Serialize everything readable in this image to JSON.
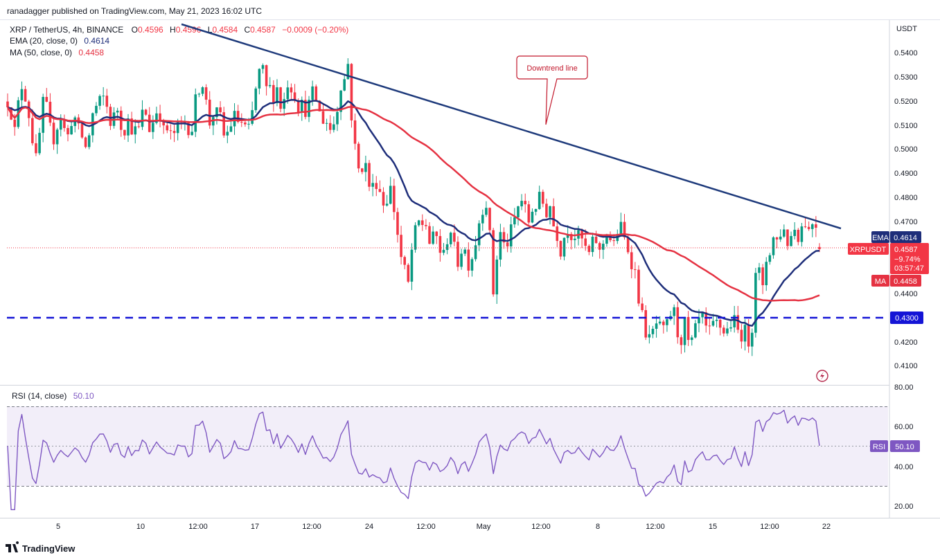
{
  "publisher": "ranadagger published on TradingView.com, May 21, 2023 16:02 UTC",
  "legend": {
    "symbol": "XRP / TetherUS, 4h, BINANCE",
    "o_label": "O",
    "o": "0.4596",
    "h_label": "H",
    "h": "0.4596",
    "l_label": "L",
    "l": "0.4584",
    "c_label": "C",
    "c": "0.4587",
    "change": "−0.0009 (−0.20%)",
    "ema": "EMA (20, close, 0)",
    "ema_value": "0.4614",
    "ma": "MA (50, close, 0)",
    "ma_value": "0.4458"
  },
  "rsi_legend": {
    "label": "RSI (14, close)",
    "value": "50.10"
  },
  "annotation": "Downtrend line",
  "branding": "TradingView",
  "badges": {
    "ema_tag": "EMA",
    "ema_value": "0.4614",
    "symbol_tag": "XRPUSDT",
    "price": "0.4587",
    "change": "−9.74%",
    "countdown": "03:57:47",
    "ma_tag": "MA",
    "ma_value": "0.4458",
    "support_value": "0.4300",
    "rsi_tag": "RSI",
    "rsi_value": "50.10"
  },
  "colors": {
    "up": "#089981",
    "down": "#f23645",
    "ema": "#1e2e7a",
    "ma": "#e53242",
    "trendline": "#1e3a7b",
    "support": "#1414d6",
    "rsi": "#7e57c2",
    "rsi_band": "rgba(126,87,194,0.10)",
    "price_line": "#f23645"
  },
  "chart_data": {
    "type": "candlestick",
    "pair": "XRPUSDT",
    "price_axis": {
      "label": "USDT",
      "ticks": [
        "0.5400",
        "0.5300",
        "0.5200",
        "0.5100",
        "0.5000",
        "0.4900",
        "0.4800",
        "0.4700",
        "0.4400",
        "0.4200",
        "0.4100"
      ],
      "range": [
        0.4025,
        0.5505
      ]
    },
    "time_axis": {
      "ticks": [
        "5",
        "10",
        "12:00",
        "17",
        "12:00",
        "24",
        "12:00",
        "May",
        "12:00",
        "8",
        "12:00",
        "15",
        "12:00",
        "22"
      ]
    },
    "rsi_axis": {
      "ticks": [
        "80.00",
        "60.00",
        "40.00",
        "20.00"
      ],
      "range": [
        15,
        80
      ],
      "upper_band": 70,
      "lower_band": 30
    },
    "support_level": 0.43,
    "downtrend_line": {
      "start": [
        0.55,
        "Apr 12 00:00"
      ],
      "end": [
        0.4675,
        "May 21 08:00"
      ]
    },
    "key_levels": {
      "last": 0.4587,
      "ema20": 0.4614,
      "ma50": 0.4458,
      "rsi": 50.1
    },
    "price_path": [
      [
        0.52,
        0.515
      ],
      [
        0.507,
        0.521
      ],
      [
        0.528,
        0.52
      ],
      [
        0.512,
        0.5
      ],
      [
        0.493,
        0.518
      ],
      [
        0.521,
        0.512
      ],
      [
        0.503,
        0.508
      ],
      [
        0.515,
        0.509
      ],
      [
        0.505,
        0.512
      ],
      [
        0.513,
        0.508
      ],
      [
        0.505,
        0.5
      ],
      [
        0.508,
        0.517
      ],
      [
        0.518,
        0.521
      ],
      [
        0.522,
        0.514
      ],
      [
        0.509,
        0.52
      ],
      [
        0.512,
        0.507
      ],
      [
        0.513,
        0.509
      ],
      [
        0.508,
        0.508
      ],
      [
        0.515,
        0.515
      ],
      [
        0.508,
        0.512
      ],
      [
        0.517,
        0.514
      ],
      [
        0.505,
        0.51
      ],
      [
        0.503,
        0.51
      ],
      [
        0.509,
        0.512
      ],
      [
        0.511,
        0.505
      ],
      [
        0.519,
        0.525
      ],
      [
        0.529,
        0.52
      ],
      [
        0.511,
        0.515
      ],
      [
        0.515,
        0.513
      ],
      [
        0.504,
        0.508
      ],
      [
        0.512,
        0.515
      ],
      [
        0.51,
        0.512
      ],
      [
        0.506,
        0.511
      ],
      [
        0.522,
        0.531
      ],
      [
        0.535,
        0.525
      ],
      [
        0.526,
        0.522
      ],
      [
        0.526,
        0.518
      ],
      [
        0.521,
        0.529
      ],
      [
        0.525,
        0.522
      ],
      [
        0.516,
        0.52
      ],
      [
        0.514,
        0.523
      ],
      [
        0.524,
        0.517
      ],
      [
        0.512,
        0.513
      ],
      [
        0.508,
        0.51
      ],
      [
        0.516,
        0.527
      ],
      [
        0.529,
        0.536
      ],
      [
        0.512,
        0.499
      ],
      [
        0.49,
        0.494
      ],
      [
        0.493,
        0.481
      ],
      [
        0.487,
        0.486
      ],
      [
        0.48,
        0.475
      ],
      [
        0.487,
        0.478
      ],
      [
        0.468,
        0.456
      ],
      [
        0.451,
        0.443
      ],
      [
        0.458,
        0.466
      ],
      [
        0.47,
        0.469
      ],
      [
        0.469,
        0.459
      ],
      [
        0.465,
        0.463
      ],
      [
        0.455,
        0.457
      ],
      [
        0.469,
        0.464
      ],
      [
        0.451,
        0.458
      ],
      [
        0.46,
        0.452
      ],
      [
        0.455,
        0.461
      ],
      [
        0.47,
        0.476
      ],
      [
        0.478,
        0.462
      ],
      [
        0.436,
        0.461
      ],
      [
        0.467,
        0.457
      ],
      [
        0.464,
        0.468
      ],
      [
        0.474,
        0.479
      ],
      [
        0.479,
        0.468
      ],
      [
        0.475,
        0.476
      ],
      [
        0.48,
        0.478
      ],
      [
        0.474,
        0.477
      ],
      [
        0.468,
        0.464
      ],
      [
        0.457,
        0.466
      ],
      [
        0.468,
        0.463
      ],
      [
        0.465,
        0.463
      ],
      [
        0.462,
        0.455
      ],
      [
        0.459,
        0.465
      ],
      [
        0.456,
        0.46
      ],
      [
        0.467,
        0.463
      ],
      [
        0.46,
        0.466
      ],
      [
        0.468,
        0.462
      ],
      [
        0.458,
        0.452
      ],
      [
        0.448,
        0.434
      ],
      [
        0.429,
        0.421
      ],
      [
        0.421,
        0.428
      ],
      [
        0.427,
        0.424
      ],
      [
        0.426,
        0.431
      ],
      [
        0.434,
        0.424
      ],
      [
        0.421,
        0.428
      ],
      [
        0.419,
        0.42
      ],
      [
        0.426,
        0.43
      ],
      [
        0.43,
        0.423
      ],
      [
        0.425,
        0.428
      ],
      [
        0.428,
        0.425
      ],
      [
        0.424,
        0.427
      ],
      [
        0.43,
        0.425
      ],
      [
        0.423,
        0.425
      ],
      [
        0.42,
        0.427
      ],
      [
        0.452,
        0.449
      ],
      [
        0.44,
        0.458
      ],
      [
        0.458,
        0.466
      ],
      [
        0.46,
        0.47
      ],
      [
        0.463,
        0.46
      ],
      [
        0.47,
        0.463
      ],
      [
        0.467,
        0.471
      ],
      [
        0.466,
        0.47
      ],
      [
        0.47,
        0.459
      ]
    ]
  }
}
